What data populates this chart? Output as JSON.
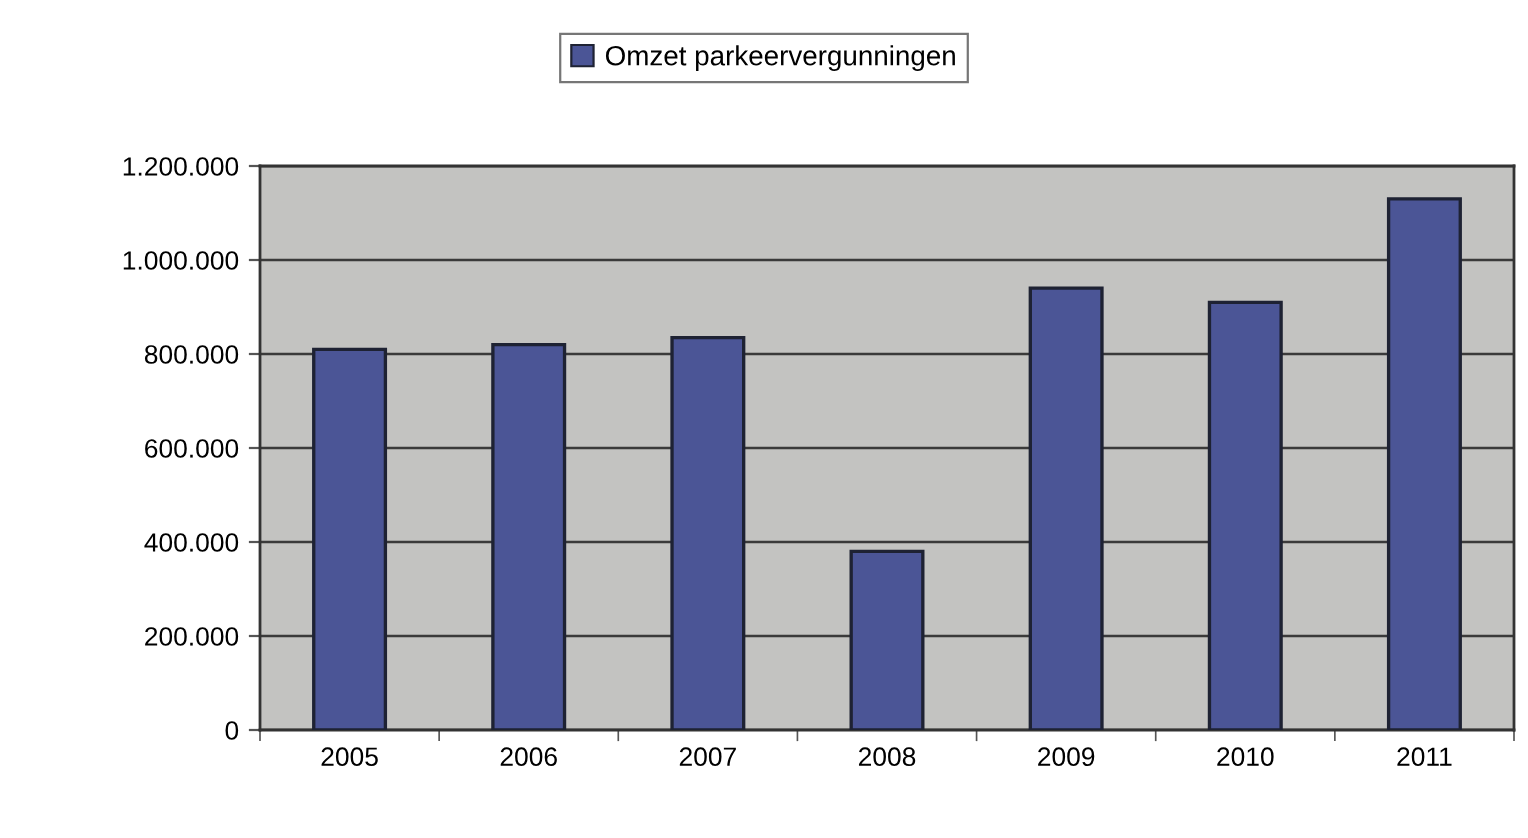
{
  "chart_data": {
    "type": "bar",
    "categories": [
      "2005",
      "2006",
      "2007",
      "2008",
      "2009",
      "2010",
      "2011"
    ],
    "series": [
      {
        "name": "Omzet parkeervergunningen",
        "color": "#4b5596",
        "values": [
          810000,
          820000,
          835000,
          380000,
          940000,
          910000,
          1130000
        ]
      }
    ],
    "ylim": [
      0,
      1200000
    ],
    "yticks": [
      {
        "value": 0,
        "label": "0"
      },
      {
        "value": 200000,
        "label": "200.000"
      },
      {
        "value": 400000,
        "label": "400.000"
      },
      {
        "value": 600000,
        "label": "600.000"
      },
      {
        "value": 800000,
        "label": "800.000"
      },
      {
        "value": 1000000,
        "label": "1.000.000"
      },
      {
        "value": 1200000,
        "label": "1.200.000"
      }
    ],
    "grid": "y",
    "legend": "top"
  }
}
